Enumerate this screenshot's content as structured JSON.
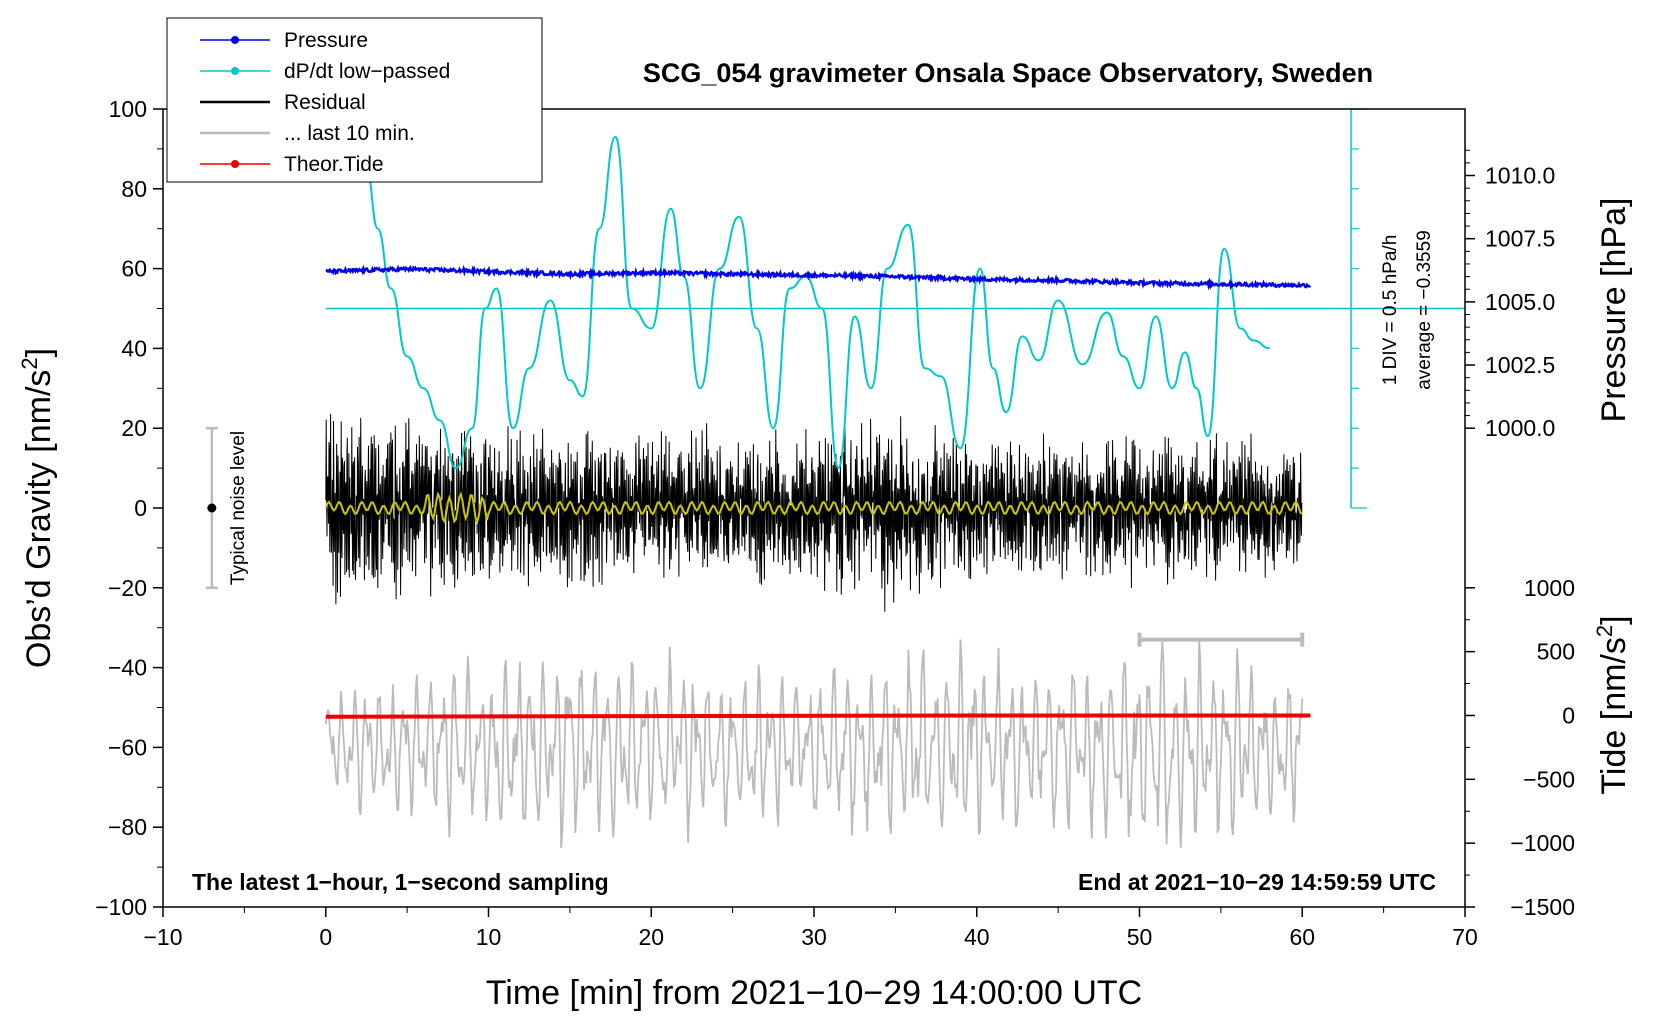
{
  "chart_data": {
    "type": "line",
    "title": "SCG_054 gravimeter Onsala Space Observatory, Sweden",
    "xlabel": "Time [min] from 2021−10−29 14:00:00 UTC",
    "ylabel_left": "Obs’d Gravity [nm/s",
    "ylabel_left_sup": "2",
    "ylabel_left_close": "]",
    "ylabel_right_pressure": "Pressure [hPa]",
    "ylabel_right_tide": "Tide [nm/s",
    "ylabel_right_tide_sup": "2",
    "ylabel_right_tide_close": "]",
    "xlim": [
      -10,
      70
    ],
    "ylim": [
      -100,
      100
    ],
    "x_ticks": [
      -10,
      0,
      10,
      20,
      30,
      40,
      50,
      60,
      70
    ],
    "x_tick_labels": [
      "−10",
      "0",
      "10",
      "20",
      "30",
      "40",
      "50",
      "60",
      "70"
    ],
    "y_ticks": [
      -100,
      -80,
      -60,
      -40,
      -20,
      0,
      20,
      40,
      60,
      80,
      100
    ],
    "y_tick_labels": [
      "−100",
      "−80",
      "−60",
      "−40",
      "−20",
      "0",
      "20",
      "40",
      "60",
      "80",
      "100"
    ],
    "pressure_axis": {
      "ticks": [
        1000.0,
        1002.5,
        1005.0,
        1007.5,
        1010.0
      ],
      "tick_labels": [
        "1000.0",
        "1002.5",
        "1005.0",
        "1007.5",
        "1010.0"
      ],
      "map_gravity": [
        [
          1000.0,
          20
        ],
        [
          1010.0,
          83.33
        ]
      ]
    },
    "tide_axis": {
      "ticks": [
        -1500,
        -1000,
        -500,
        0,
        500,
        1000
      ],
      "tick_labels": [
        "−1500",
        "−1000",
        "−500",
        "0",
        "500",
        "1000"
      ],
      "map_gravity": [
        [
          -1500,
          -100
        ],
        [
          1000,
          -20
        ]
      ]
    },
    "legend": [
      {
        "label": "Pressure",
        "color": "#0000ee",
        "marker": true
      },
      {
        "label": "dP/dt low−passed",
        "color": "#00c8c8",
        "marker": true
      },
      {
        "label": "Residual",
        "color": "#000000",
        "marker": false
      },
      {
        "label": "... last 10 min.",
        "color": "#bbbbbb",
        "marker": false
      },
      {
        "label": "Theor.Tide",
        "color": "#ee0000",
        "marker": true
      }
    ],
    "series": [
      {
        "name": "Pressure",
        "unit": "hPa",
        "color": "#0000ee",
        "x": [
          0,
          5,
          10,
          15,
          20,
          25,
          30,
          35,
          40,
          45,
          50,
          55,
          60.5
        ],
        "values": [
          1006.2,
          1006.3,
          1006.2,
          1006.1,
          1006.15,
          1006.1,
          1006.05,
          1006.0,
          1005.9,
          1005.85,
          1005.75,
          1005.7,
          1005.65
        ]
      },
      {
        "name": "dP/dt low−passed",
        "unit": "gravity-scale",
        "color": "#00c8c8",
        "x": [
          2.5,
          3.2,
          4.0,
          5.0,
          6.0,
          7.0,
          8.0,
          9.0,
          9.8,
          10.5,
          11.5,
          12.5,
          13.8,
          15.0,
          15.8,
          16.8,
          17.8,
          18.8,
          20.0,
          21.2,
          22.0,
          23.0,
          24.2,
          25.4,
          26.5,
          27.5,
          28.5,
          29.5,
          30.5,
          31.5,
          32.5,
          33.5,
          34.5,
          35.8,
          36.8,
          37.8,
          39.0,
          40.2,
          41.0,
          41.8,
          42.8,
          43.8,
          45.0,
          46.5,
          48.0,
          49.0,
          50.0,
          51.0,
          52.0,
          52.8,
          53.5,
          54.2,
          55.2,
          56.2,
          57.0,
          58.0
        ],
        "values": [
          85,
          70,
          55,
          38,
          30,
          22,
          10,
          20,
          50,
          55,
          20,
          35,
          52,
          32,
          28,
          70,
          93,
          50,
          45,
          75,
          58,
          30,
          60,
          73,
          45,
          20,
          55,
          58,
          50,
          10,
          48,
          30,
          60,
          71,
          35,
          33,
          15,
          60,
          35,
          24,
          43,
          37,
          52,
          36,
          49,
          38,
          30,
          48,
          30,
          39,
          30,
          18,
          65,
          45,
          42,
          40
        ]
      },
      {
        "name": "Residual",
        "color": "#000000",
        "x_range": [
          0,
          60
        ],
        "amplitude_envelope": {
          "x": [
            0,
            10,
            20,
            30,
            34,
            40,
            50,
            60
          ],
          "values": [
            40,
            33,
            30,
            32,
            38,
            28,
            30,
            26
          ]
        }
      },
      {
        "name": "Residual low−passed",
        "color": "#c8c800",
        "x_range": [
          0,
          60
        ],
        "values_about": 0
      },
      {
        "name": "... last 10 min.",
        "color": "#bbbbbb",
        "x_range": [
          0,
          60
        ],
        "center": -60,
        "amplitude_envelope": {
          "x": [
            0,
            15,
            30,
            36,
            45,
            52,
            60
          ],
          "values": [
            15,
            25,
            18,
            26,
            20,
            28,
            18
          ]
        }
      },
      {
        "name": "Theor.Tide",
        "unit": "nm/s^2",
        "color": "#ee0000",
        "x": [
          0,
          20,
          40,
          60.5
        ],
        "values": [
          -10,
          -5,
          0,
          0
        ]
      }
    ],
    "noise_bar": {
      "x": -7,
      "low": -20,
      "high": 20,
      "center": 0,
      "label": "Typical noise level"
    },
    "last10_range": {
      "x_start": 50,
      "x_end": 60,
      "y": -33
    },
    "dpdt_axis": {
      "x": 63,
      "y_top": 100,
      "y_bottom": 0,
      "ref_y": 50
    },
    "dpdt_label_1": "1 DIV = 0.5 hPa/h",
    "dpdt_label_2": "average = −0.3559",
    "bottom_left_note": "The latest 1−hour, 1−second sampling",
    "bottom_right_note": "End at 2021−10−29 14:59:59 UTC"
  }
}
